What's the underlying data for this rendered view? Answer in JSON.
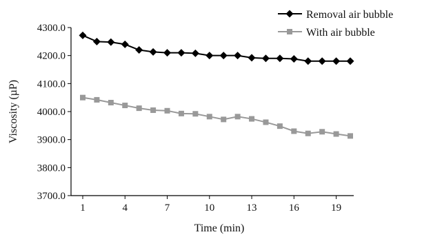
{
  "chart_data": {
    "type": "line",
    "title": "",
    "xlabel": "Time (min)",
    "ylabel": "Viscosity (µP)",
    "x": [
      1,
      2,
      3,
      4,
      5,
      6,
      7,
      8,
      9,
      10,
      11,
      12,
      13,
      14,
      15,
      16,
      17,
      18,
      19,
      20
    ],
    "xticks": [
      1,
      4,
      7,
      10,
      13,
      16,
      19
    ],
    "xtick_labels": [
      "1",
      "4",
      "7",
      "10",
      "13",
      "16",
      "19"
    ],
    "xlim": [
      1,
      20
    ],
    "ylim": [
      3700,
      4300
    ],
    "yticks": [
      3700,
      3800,
      3900,
      4000,
      4100,
      4200,
      4300
    ],
    "ytick_labels": [
      "3700.0",
      "3800.0",
      "3900.0",
      "4000.0",
      "4100.0",
      "4200.0",
      "4300.0"
    ],
    "grid": false,
    "legend_position": "top-right",
    "series": [
      {
        "name": "Removal air bubble",
        "color": "#000000",
        "marker": "diamond",
        "values": [
          4272,
          4250,
          4248,
          4240,
          4220,
          4213,
          4210,
          4210,
          4208,
          4200,
          4200,
          4200,
          4192,
          4190,
          4190,
          4188,
          4180,
          4180,
          4180,
          4180
        ]
      },
      {
        "name": "With air bubble",
        "color": "#999999",
        "marker": "square",
        "values": [
          4050,
          4042,
          4032,
          4022,
          4012,
          4005,
          4003,
          3993,
          3992,
          3982,
          3972,
          3982,
          3974,
          3962,
          3948,
          3930,
          3922,
          3928,
          3920,
          3913
        ]
      }
    ]
  }
}
